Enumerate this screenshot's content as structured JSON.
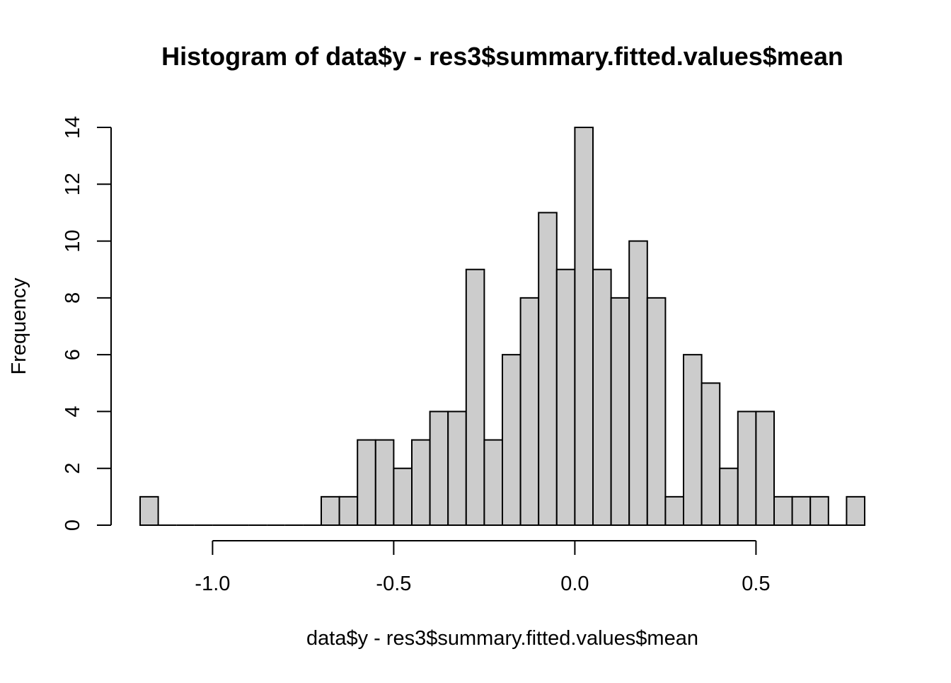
{
  "chart_data": {
    "type": "bar",
    "title": "Histogram of data$y - res3$summary.fitted.values$mean",
    "xlabel": "data$y - res3$summary.fitted.values$mean",
    "ylabel": "Frequency",
    "bin_width": 0.05,
    "bin_start": -1.2,
    "bin_edges": [
      -1.2,
      -1.15,
      -1.1,
      -1.05,
      -1.0,
      -0.95,
      -0.9,
      -0.85,
      -0.8,
      -0.75,
      -0.7,
      -0.65,
      -0.6,
      -0.55,
      -0.5,
      -0.45,
      -0.4,
      -0.35,
      -0.3,
      -0.25,
      -0.2,
      -0.15,
      -0.1,
      -0.05,
      0.0,
      0.05,
      0.1,
      0.15,
      0.2,
      0.25,
      0.3,
      0.35,
      0.4,
      0.45,
      0.5,
      0.55,
      0.6,
      0.65,
      0.7,
      0.75,
      0.8
    ],
    "values": [
      1,
      0,
      0,
      0,
      0,
      0,
      0,
      0,
      0,
      0,
      1,
      1,
      3,
      3,
      2,
      3,
      4,
      4,
      9,
      3,
      6,
      8,
      11,
      9,
      14,
      9,
      8,
      10,
      8,
      1,
      6,
      5,
      2,
      4,
      4,
      1,
      1,
      1,
      0,
      1
    ],
    "xlim": [
      -1.2,
      0.8
    ],
    "ylim": [
      0,
      14
    ],
    "x_ticks": [
      -1.0,
      -0.5,
      0.0,
      0.5
    ],
    "x_tick_labels": [
      "-1.0",
      "-0.5",
      "0.0",
      "0.5"
    ],
    "y_ticks": [
      0,
      2,
      4,
      6,
      8,
      10,
      12,
      14
    ],
    "y_tick_labels": [
      "0",
      "2",
      "4",
      "6",
      "8",
      "10",
      "12",
      "14"
    ],
    "grid": false,
    "colors": {
      "bar_fill": "#cccccc",
      "bar_stroke": "#000000",
      "axis": "#000000",
      "background": "#ffffff"
    }
  }
}
